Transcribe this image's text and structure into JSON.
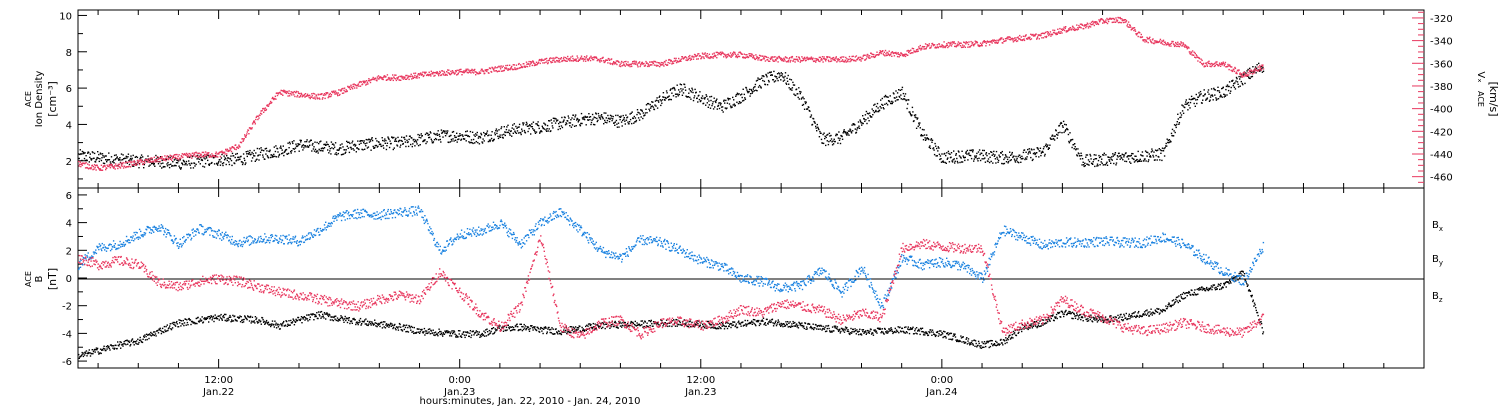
{
  "colors": {
    "black": "#000000",
    "pink": "#e8385f",
    "blue": "#1a82e0"
  },
  "chart_data": [
    {
      "type": "scatter",
      "panel": "top",
      "ylabel": {
        "line1": "ACE",
        "line2": "Ion Density",
        "units": "[cm⁻³]"
      },
      "ylabel_right": {
        "line1": "ACE",
        "line2": "Vₓ",
        "units": "[km/s]"
      },
      "ylim": [
        0.5,
        10.3
      ],
      "ylim_right": [
        -470,
        -313
      ],
      "left_ticks": [
        "2",
        "4",
        "6",
        "8",
        "10"
      ],
      "right_ticks": [
        "-460",
        "-440",
        "-420",
        "-400",
        "-380",
        "-360",
        "-340",
        "-320"
      ],
      "series": [
        {
          "axis": "left",
          "color": "#000000",
          "x_hours": [
            0,
            1,
            2,
            3,
            4,
            5,
            6,
            7,
            8,
            9,
            10,
            11,
            12,
            13,
            14,
            15,
            16,
            17,
            18,
            19,
            20,
            21,
            22,
            23,
            24,
            25,
            26,
            27,
            28,
            29,
            30,
            31,
            32,
            33,
            34,
            35,
            36,
            37,
            38,
            39,
            40,
            41,
            42,
            43,
            44,
            45,
            46,
            47,
            48,
            49,
            50,
            51,
            52,
            53,
            54,
            55,
            56,
            57,
            58,
            59
          ],
          "values": [
            2.3,
            2.2,
            2.1,
            2.0,
            2.0,
            1.9,
            2.0,
            2.1,
            2.1,
            2.4,
            2.6,
            2.9,
            2.8,
            2.7,
            2.9,
            3.0,
            3.0,
            3.2,
            3.4,
            3.4,
            3.3,
            3.6,
            3.8,
            3.9,
            4.1,
            4.3,
            4.4,
            4.2,
            4.6,
            5.4,
            6.0,
            5.5,
            5.0,
            5.6,
            6.4,
            6.8,
            5.5,
            3.2,
            3.3,
            4.2,
            5.2,
            5.8,
            3.5,
            2.2,
            2.3,
            2.3,
            2.2,
            2.3,
            2.5,
            4.0,
            2.0,
            2.1,
            2.2,
            2.3,
            2.4,
            5.0,
            5.6,
            5.8,
            6.6,
            7.3
          ]
        },
        {
          "axis": "right",
          "color": "#e8385f",
          "x_hours": [
            0,
            1,
            2,
            3,
            4,
            5,
            6,
            7,
            8,
            9,
            10,
            11,
            12,
            13,
            14,
            15,
            16,
            17,
            18,
            19,
            20,
            21,
            22,
            23,
            24,
            25,
            26,
            27,
            28,
            29,
            30,
            31,
            32,
            33,
            34,
            35,
            36,
            37,
            38,
            39,
            40,
            41,
            42,
            43,
            44,
            45,
            46,
            47,
            48,
            49,
            50,
            51,
            52,
            53,
            54,
            55,
            56,
            57,
            58,
            59
          ],
          "values": [
            -448,
            -452,
            -450,
            -447,
            -444,
            -442,
            -440,
            -440,
            -432,
            -405,
            -385,
            -387,
            -389,
            -385,
            -378,
            -372,
            -372,
            -370,
            -368,
            -367,
            -367,
            -364,
            -362,
            -358,
            -356,
            -355,
            -356,
            -360,
            -360,
            -360,
            -356,
            -353,
            -352,
            -352,
            -355,
            -356,
            -356,
            -356,
            -356,
            -355,
            -350,
            -352,
            -345,
            -343,
            -343,
            -342,
            -339,
            -337,
            -335,
            -330,
            -327,
            -322,
            -321,
            -338,
            -341,
            -343,
            -360,
            -360,
            -370,
            -362
          ]
        }
      ]
    },
    {
      "type": "scatter",
      "panel": "bottom",
      "ylabel": {
        "line1": "ACE",
        "line2": "B",
        "units": "[nT]"
      },
      "ylim": [
        -6.5,
        6.5
      ],
      "left_ticks": [
        "-6",
        "-4",
        "-2",
        "0",
        "2",
        "4",
        "6"
      ],
      "series": [
        {
          "name": "Bx",
          "color": "#000000",
          "x_hours": [
            0,
            1,
            2,
            3,
            4,
            5,
            6,
            7,
            8,
            9,
            10,
            11,
            12,
            13,
            14,
            15,
            16,
            17,
            18,
            19,
            20,
            21,
            22,
            23,
            24,
            25,
            26,
            27,
            28,
            29,
            30,
            31,
            32,
            33,
            34,
            35,
            36,
            37,
            38,
            39,
            40,
            41,
            42,
            43,
            44,
            45,
            46,
            47,
            48,
            49,
            50,
            51,
            52,
            53,
            54,
            55,
            56,
            57,
            58,
            59
          ],
          "values": [
            -5.6,
            -5.2,
            -4.8,
            -4.5,
            -3.8,
            -3.2,
            -3.0,
            -2.8,
            -2.9,
            -3.0,
            -3.4,
            -3.0,
            -2.6,
            -2.9,
            -3.1,
            -3.3,
            -3.5,
            -3.8,
            -3.9,
            -4.0,
            -4.0,
            -3.6,
            -3.5,
            -3.7,
            -3.8,
            -3.6,
            -3.4,
            -3.3,
            -3.3,
            -3.2,
            -3.2,
            -3.3,
            -3.4,
            -3.3,
            -3.1,
            -3.2,
            -3.4,
            -3.6,
            -3.7,
            -3.9,
            -3.8,
            -3.7,
            -3.8,
            -4.0,
            -4.4,
            -4.8,
            -4.6,
            -3.5,
            -3.2,
            -2.5,
            -2.8,
            -3.0,
            -2.8,
            -2.5,
            -2.3,
            -1.2,
            -0.8,
            -0.5,
            0.4,
            -4.0
          ]
        },
        {
          "name": "By",
          "color": "#1a82e0",
          "x_hours": [
            0,
            1,
            2,
            3,
            4,
            5,
            6,
            7,
            8,
            9,
            10,
            11,
            12,
            13,
            14,
            15,
            16,
            17,
            18,
            19,
            20,
            21,
            22,
            23,
            24,
            25,
            26,
            27,
            28,
            29,
            30,
            31,
            32,
            33,
            34,
            35,
            36,
            37,
            38,
            39,
            40,
            41,
            42,
            43,
            44,
            45,
            46,
            47,
            48,
            49,
            50,
            51,
            52,
            53,
            54,
            55,
            56,
            57,
            58,
            59
          ],
          "values": [
            1.0,
            2.2,
            2.5,
            3.2,
            3.8,
            2.5,
            3.6,
            3.2,
            2.6,
            2.9,
            2.9,
            2.7,
            3.5,
            4.5,
            4.7,
            4.6,
            4.8,
            4.9,
            2.0,
            3.2,
            3.4,
            4.0,
            2.5,
            4.0,
            4.8,
            3.5,
            2.0,
            1.5,
            2.8,
            2.6,
            2.0,
            1.3,
            0.9,
            0.0,
            -0.2,
            -0.7,
            -0.5,
            0.6,
            -1.0,
            0.8,
            -2.0,
            1.5,
            1.0,
            1.2,
            0.9,
            0.0,
            3.5,
            3.0,
            2.4,
            2.6,
            2.6,
            2.7,
            2.6,
            2.6,
            3.0,
            2.5,
            1.5,
            0.5,
            -0.2,
            2.4
          ]
        },
        {
          "name": "Bz",
          "color": "#e8385f",
          "x_hours": [
            0,
            1,
            2,
            3,
            4,
            5,
            6,
            7,
            8,
            9,
            10,
            11,
            12,
            13,
            14,
            15,
            16,
            17,
            18,
            19,
            20,
            21,
            22,
            23,
            24,
            25,
            26,
            27,
            28,
            29,
            30,
            31,
            32,
            33,
            34,
            35,
            36,
            37,
            38,
            39,
            40,
            41,
            42,
            43,
            44,
            45,
            46,
            47,
            48,
            49,
            50,
            51,
            52,
            53,
            54,
            55,
            56,
            57,
            58,
            59
          ],
          "values": [
            1.5,
            1.0,
            1.3,
            1.0,
            -0.3,
            -0.6,
            -0.2,
            0.0,
            -0.2,
            -0.6,
            -1.0,
            -1.2,
            -1.5,
            -1.8,
            -2.0,
            -1.5,
            -1.2,
            -1.5,
            0.5,
            -1.0,
            -2.5,
            -3.5,
            -2.0,
            3.0,
            -3.5,
            -4.2,
            -3.2,
            -3.0,
            -4.0,
            -3.2,
            -3.1,
            -3.4,
            -3.0,
            -2.2,
            -2.5,
            -1.8,
            -2.0,
            -2.3,
            -3.0,
            -2.5,
            -2.8,
            2.2,
            2.5,
            2.3,
            2.2,
            2.2,
            -3.8,
            -3.3,
            -3.0,
            -1.5,
            -2.3,
            -2.8,
            -3.5,
            -3.8,
            -3.6,
            -3.2,
            -3.5,
            -3.8,
            -3.9,
            -2.8
          ]
        }
      ]
    }
  ],
  "bottom_legend": {
    "bx": {
      "main": "B",
      "sub": "x"
    },
    "by": {
      "main": "B",
      "sub": "y"
    },
    "bz": {
      "main": "B",
      "sub": "z"
    }
  },
  "x_axis": {
    "xlim_hours": [
      0,
      67
    ],
    "ticks": [
      {
        "hour": 7,
        "label": "12:00",
        "date": "Jan.22"
      },
      {
        "hour": 19,
        "label": "0:00",
        "date": "Jan.23"
      },
      {
        "hour": 31,
        "label": "12:00",
        "date": "Jan.23"
      },
      {
        "hour": 43,
        "label": "0:00",
        "date": "Jan.24"
      }
    ],
    "xlabel": "hours:minutes, Jan. 22, 2010 - Jan. 24, 2010"
  }
}
